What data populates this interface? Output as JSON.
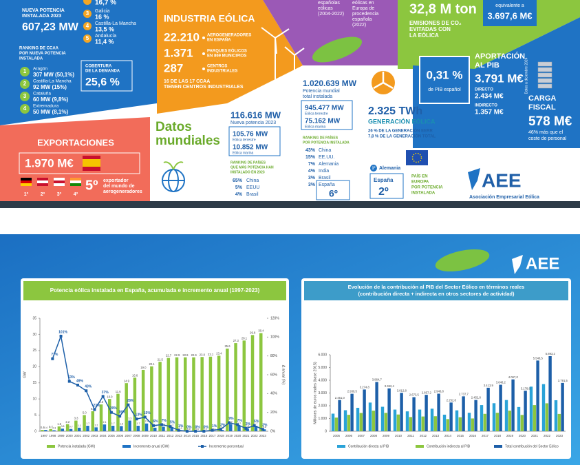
{
  "infographic": {
    "regions_top": {
      "partial_share": "16,7 %",
      "items": [
        {
          "rank": "3",
          "name": "Galicia",
          "share": "16 %"
        },
        {
          "rank": "4",
          "name": "Castilla-La Mancha",
          "share": "13,5 %"
        },
        {
          "rank": "5",
          "name": "Andalucía",
          "share": "11,4 %"
        }
      ]
    },
    "new_power": {
      "label": [
        "NUEVA POTENCIA",
        "INSTALADA 2023"
      ],
      "value": "607,23 MW"
    },
    "ccaa_ranking": {
      "title": [
        "RANKING DE CCAA",
        "POR NUEVA POTENCIA",
        "INSTALADA"
      ],
      "items": [
        {
          "rank": "1",
          "name": "Aragón",
          "value": "307 MW (50,1%)"
        },
        {
          "rank": "2",
          "name": "Castilla-La Mancha",
          "value": "92 MW (15%)"
        },
        {
          "rank": "3",
          "name": "Cataluña",
          "value": "60 MW (9,8%)"
        },
        {
          "rank": "4",
          "name": "Extremadura",
          "value": "50 MW (8,1%)"
        }
      ]
    },
    "coverage": {
      "label": [
        "COBERTURA",
        "DE LA DEMANDA"
      ],
      "value": "25,6 %"
    },
    "industry": {
      "title": "INDUSTRIA EÓLICA",
      "items": [
        {
          "value": "22.210",
          "label": [
            "AEROGENERADORES",
            "EN ESPAÑA"
          ]
        },
        {
          "value": "1.371",
          "label": [
            "PARQUES EÓLICOS",
            "EN 869 MUNICIPIOS"
          ]
        },
        {
          "value": "287",
          "label": [
            "CENTROS",
            "INDUSTRIALES"
          ]
        }
      ],
      "note": [
        "16 DE LAS 17 CCAA",
        "TIENEN CENTROS INDUSTRIALES"
      ]
    },
    "purple": {
      "left": [
        "españolas",
        "eólicas",
        "(2004-2022)"
      ],
      "right": [
        "eólicas en",
        "Europa de",
        "procedencia",
        "española",
        "(2022)"
      ]
    },
    "emissions": {
      "value": "32,8 M ton",
      "label": [
        "EMISIONES DE CO₂",
        "EVITADAS CON",
        "LA EÓLICA"
      ],
      "equivalent_label": "equivalente a",
      "equivalent_value": "3.697,6 M€"
    },
    "gdp": {
      "share": "0,31 %",
      "share_label": "de PIB español",
      "title": [
        "APORTACIÓN",
        "AL PIB"
      ],
      "value": "3.791 M€",
      "direct_label": "DIRECTO",
      "direct": "2.434 M€",
      "indirect_label": "INDIRECTO",
      "indirect": "1.357 M€"
    },
    "tax": {
      "title": [
        "CARGA",
        "FISCAL"
      ],
      "value": "578 M€",
      "note": [
        "46% más que el",
        "coste de personal"
      ]
    },
    "date_note": "Datos a diciembre 2024",
    "exports": {
      "title": "EXPORTACIONES",
      "value": "1.970 M€",
      "rank": "5º",
      "label": [
        "exportador",
        "del mundo de",
        "aerogeneradores"
      ],
      "positions": [
        "1º",
        "2º",
        "3º",
        "4º"
      ]
    },
    "world": {
      "title": [
        "Datos",
        "mundiales"
      ],
      "new": {
        "value": "116.616 MW",
        "label": "Nueva potencia 2023",
        "onshore": "105.76 MW",
        "onshore_label": "Eólica terrestre",
        "offshore": "10.852 MW",
        "offshore_label": "Eólica marina",
        "ranking_title": [
          "RANKING DE PAÍSES",
          "QUE MÁS POTENCIA HAN",
          "INSTALADO EN 2023"
        ],
        "ranking": [
          {
            "share": "65%",
            "country": "China"
          },
          {
            "share": "5%",
            "country": "EEUU"
          },
          {
            "share": "4%",
            "country": "Brasil"
          }
        ]
      },
      "total": {
        "value": "1.020.639 MW",
        "label": [
          "Potencia mundial",
          "total instalada"
        ],
        "onshore": "945.477 MW",
        "onshore_label": "Eólica terrestre",
        "offshore": "75.162 MW",
        "offshore_label": "Eólica marina",
        "ranking_title": [
          "RANKING DE PAÍSES",
          "POR POTENCIA INSTALADA"
        ],
        "ranking": [
          {
            "share": "43%",
            "country": "China"
          },
          {
            "share": "15%",
            "country": "EE.UU."
          },
          {
            "share": "7%",
            "country": "Alemania"
          },
          {
            "share": "4%",
            "country": "India"
          },
          {
            "share": "3%",
            "country": "Brasil"
          },
          {
            "share": "3%",
            "country": "España"
          }
        ],
        "spain_rank": "6º"
      },
      "generation": {
        "value": "2.325 TWh",
        "title": "GENERACIÓN EÓLICA",
        "notes": [
          "26 % DE LA GENERACIÓN EERR",
          "7,8 % DE LA GENERACIÓN TOTAL"
        ]
      },
      "europe": {
        "first_rank": "1º",
        "first": "Alemania",
        "spain": "España",
        "spain_rank": "2º",
        "label": [
          "PAÍS EN",
          "EUROPA",
          "POR POTENCIA",
          "INSTALADA"
        ]
      }
    },
    "logo": {
      "name": "AEE",
      "full_name": "Asociación Empresarial Eólica"
    }
  },
  "chart_data": [
    {
      "type": "bar",
      "title": "Potencia eólica instalada en España, acumulada e incremento anual (1997-2023)",
      "y_label": "GW",
      "y2_label": "Δ anual (%)",
      "categories": [
        "1997",
        "1998",
        "1999",
        "2000",
        "2001",
        "2002",
        "2003",
        "2004",
        "2005",
        "2006",
        "2007",
        "2008",
        "2009",
        "2010",
        "2011",
        "2012",
        "2013",
        "2014",
        "2015",
        "2016",
        "2017",
        "2018",
        "2019",
        "2020",
        "2021",
        "2022",
        "2023"
      ],
      "ylim": [
        0,
        35
      ],
      "yticks": [
        0,
        5,
        10,
        15,
        20,
        25,
        30,
        35
      ],
      "y2lim": [
        0,
        120
      ],
      "y2ticks": [
        {
          "value": 0,
          "label": "0%"
        },
        {
          "value": 20,
          "label": "20%"
        },
        {
          "value": 40,
          "label": "40%"
        },
        {
          "value": 60,
          "label": "60%"
        },
        {
          "value": 80,
          "label": "80%"
        },
        {
          "value": 100,
          "label": "100%"
        },
        {
          "value": 120,
          "label": "120%"
        }
      ],
      "grid": false,
      "legend": "bottom",
      "series": [
        {
          "name": "Potencia instalada (GW)",
          "color": "#8cc63f",
          "values": [
            0.4,
            0.7,
            1.5,
            2.2,
            3.3,
            5.0,
            6.2,
            8.3,
            10.0,
            11.6,
            14.9,
            16.6,
            19.0,
            20.1,
            21.5,
            22.7,
            22.9,
            22.9,
            22.9,
            23.0,
            23.1,
            23.4,
            25.6,
            27.3,
            28.1,
            29.8,
            30.4
          ],
          "value_labels": [
            "0.4",
            "0.7",
            "1.5",
            "2.2",
            "3.3",
            "5.0",
            "6.2",
            "8.3",
            "10.0",
            "11.6",
            "14.9",
            "16.6",
            "19.0",
            "20.1",
            "21.5",
            "22.7",
            "22.9",
            "22.9",
            "22.9",
            "23.0",
            "23.1",
            "23.4",
            "25.6",
            "27.3",
            "28.1",
            "29.8",
            "30.4"
          ]
        },
        {
          "name": "Incremento anual (GW)",
          "color": "#1f73c4",
          "values": [
            0.4,
            0.3,
            0.8,
            0.7,
            1.1,
            1.7,
            1.2,
            2.1,
            1.7,
            1.6,
            3.3,
            1.7,
            2.4,
            1.1,
            1.4,
            1.2,
            0.2,
            0.0,
            0.0,
            0.1,
            0.1,
            0.4,
            2.2,
            1.7,
            0.8,
            1.7,
            0.6
          ],
          "value_labels": [
            "0.4",
            "0.3",
            "0.8",
            "0.7",
            "1.1",
            "1.7",
            "1.2",
            "2.1",
            "1.7",
            "1.6",
            "3.3",
            "1.7",
            "2.4",
            "1.1",
            "1.4",
            "1.2",
            "0.2",
            "0.0",
            "0.0",
            "0.1",
            "0.1",
            "0.4",
            "2.2",
            "1.7",
            "0.8",
            "1.7",
            "0.6"
          ]
        },
        {
          "name": "Incremento porcentual",
          "color": "#1d5fa8",
          "type": "line",
          "axis": "y2",
          "values": [
            null,
            77,
            101,
            53,
            49,
            43,
            23,
            37,
            20,
            16,
            28,
            13,
            15,
            6,
            7,
            5,
            1,
            0,
            0,
            0,
            1,
            2,
            9,
            7,
            3,
            6,
            2
          ],
          "value_labels": [
            null,
            "77%",
            "101%",
            "53%",
            "49%",
            "43%",
            "23%",
            "37%",
            "20%",
            "16%",
            "28%",
            "13%",
            "15%",
            "6%",
            "7%",
            "5%",
            "1%",
            "0%",
            "0%",
            "0%",
            "1%",
            "2%",
            "9%",
            "7%",
            "3%",
            "6%",
            "2%"
          ]
        }
      ]
    },
    {
      "type": "bar",
      "title": "Evolución de la contribución al PIB del Sector Eólico en términos reales",
      "subtitle": "(contribución directa + indirecta en otros sectores de actividad)",
      "y_label": "Millones de euros reales (base 2015)",
      "categories": [
        "2005",
        "2006",
        "2007",
        "2008",
        "2009",
        "2010",
        "2011",
        "2012",
        "2013",
        "2014",
        "2015",
        "2016",
        "2017",
        "2018",
        "2019",
        "2020",
        "2021",
        "2022",
        "2023"
      ],
      "ylim": [
        0,
        6000
      ],
      "yticks": [
        0,
        {
          "value": 1000,
          "label": "1.000"
        },
        {
          "value": 2000,
          "label": "2.000"
        },
        {
          "value": 3000,
          "label": "3.000"
        },
        {
          "value": 4000,
          "label": "4.000"
        },
        {
          "value": 5000,
          "label": "5.000"
        },
        {
          "value": 6000,
          "label": "6.000"
        }
      ],
      "grid": false,
      "legend": "bottom",
      "series": [
        {
          "name": "Contribución directa al PIB",
          "color": "#2aa3d8",
          "values": [
            1380,
            1650,
            1840,
            2250,
            1920,
            1700,
            1560,
            1700,
            1770,
            1300,
            1640,
            1450,
            2050,
            2200,
            2450,
            1900,
            3500,
            3700,
            2434
          ]
        },
        {
          "name": "Contribución indirecta al PIB",
          "color": "#8cc63f",
          "values": [
            1071,
            1290,
            1435,
            1615,
            1442,
            1313,
            1114,
            1157,
            1177,
            953,
            1098,
            1003,
            1364,
            1448,
            1617,
            1279,
            2049,
            2193,
            1357
          ]
        },
        {
          "name": "Total contribución del Sector Eólico",
          "color": "#1d5fa8",
          "values": [
            2451.0,
            2939.5,
            3274.8,
            3864.7,
            3362.4,
            3012.8,
            2673.5,
            2857.2,
            2946.8,
            2252.8,
            2737.7,
            2452.8,
            3413.9,
            3648.2,
            4067.0,
            3178.8,
            5548.5,
            5893.2,
            3791.5
          ],
          "value_labels": [
            "2.451,0",
            "2.939,5",
            "3.274,8",
            "3.864,7",
            "3.362,4",
            "3.012,8",
            "2.673,5",
            "2.857,2",
            "2.946,8",
            "2.252,8",
            "2.737,7",
            "2.452,8",
            "3.413,9",
            "3.648,2",
            "4.067,0",
            "3.178,8",
            "5.548,5",
            "5.893,2",
            "3.791,5"
          ]
        }
      ]
    }
  ]
}
